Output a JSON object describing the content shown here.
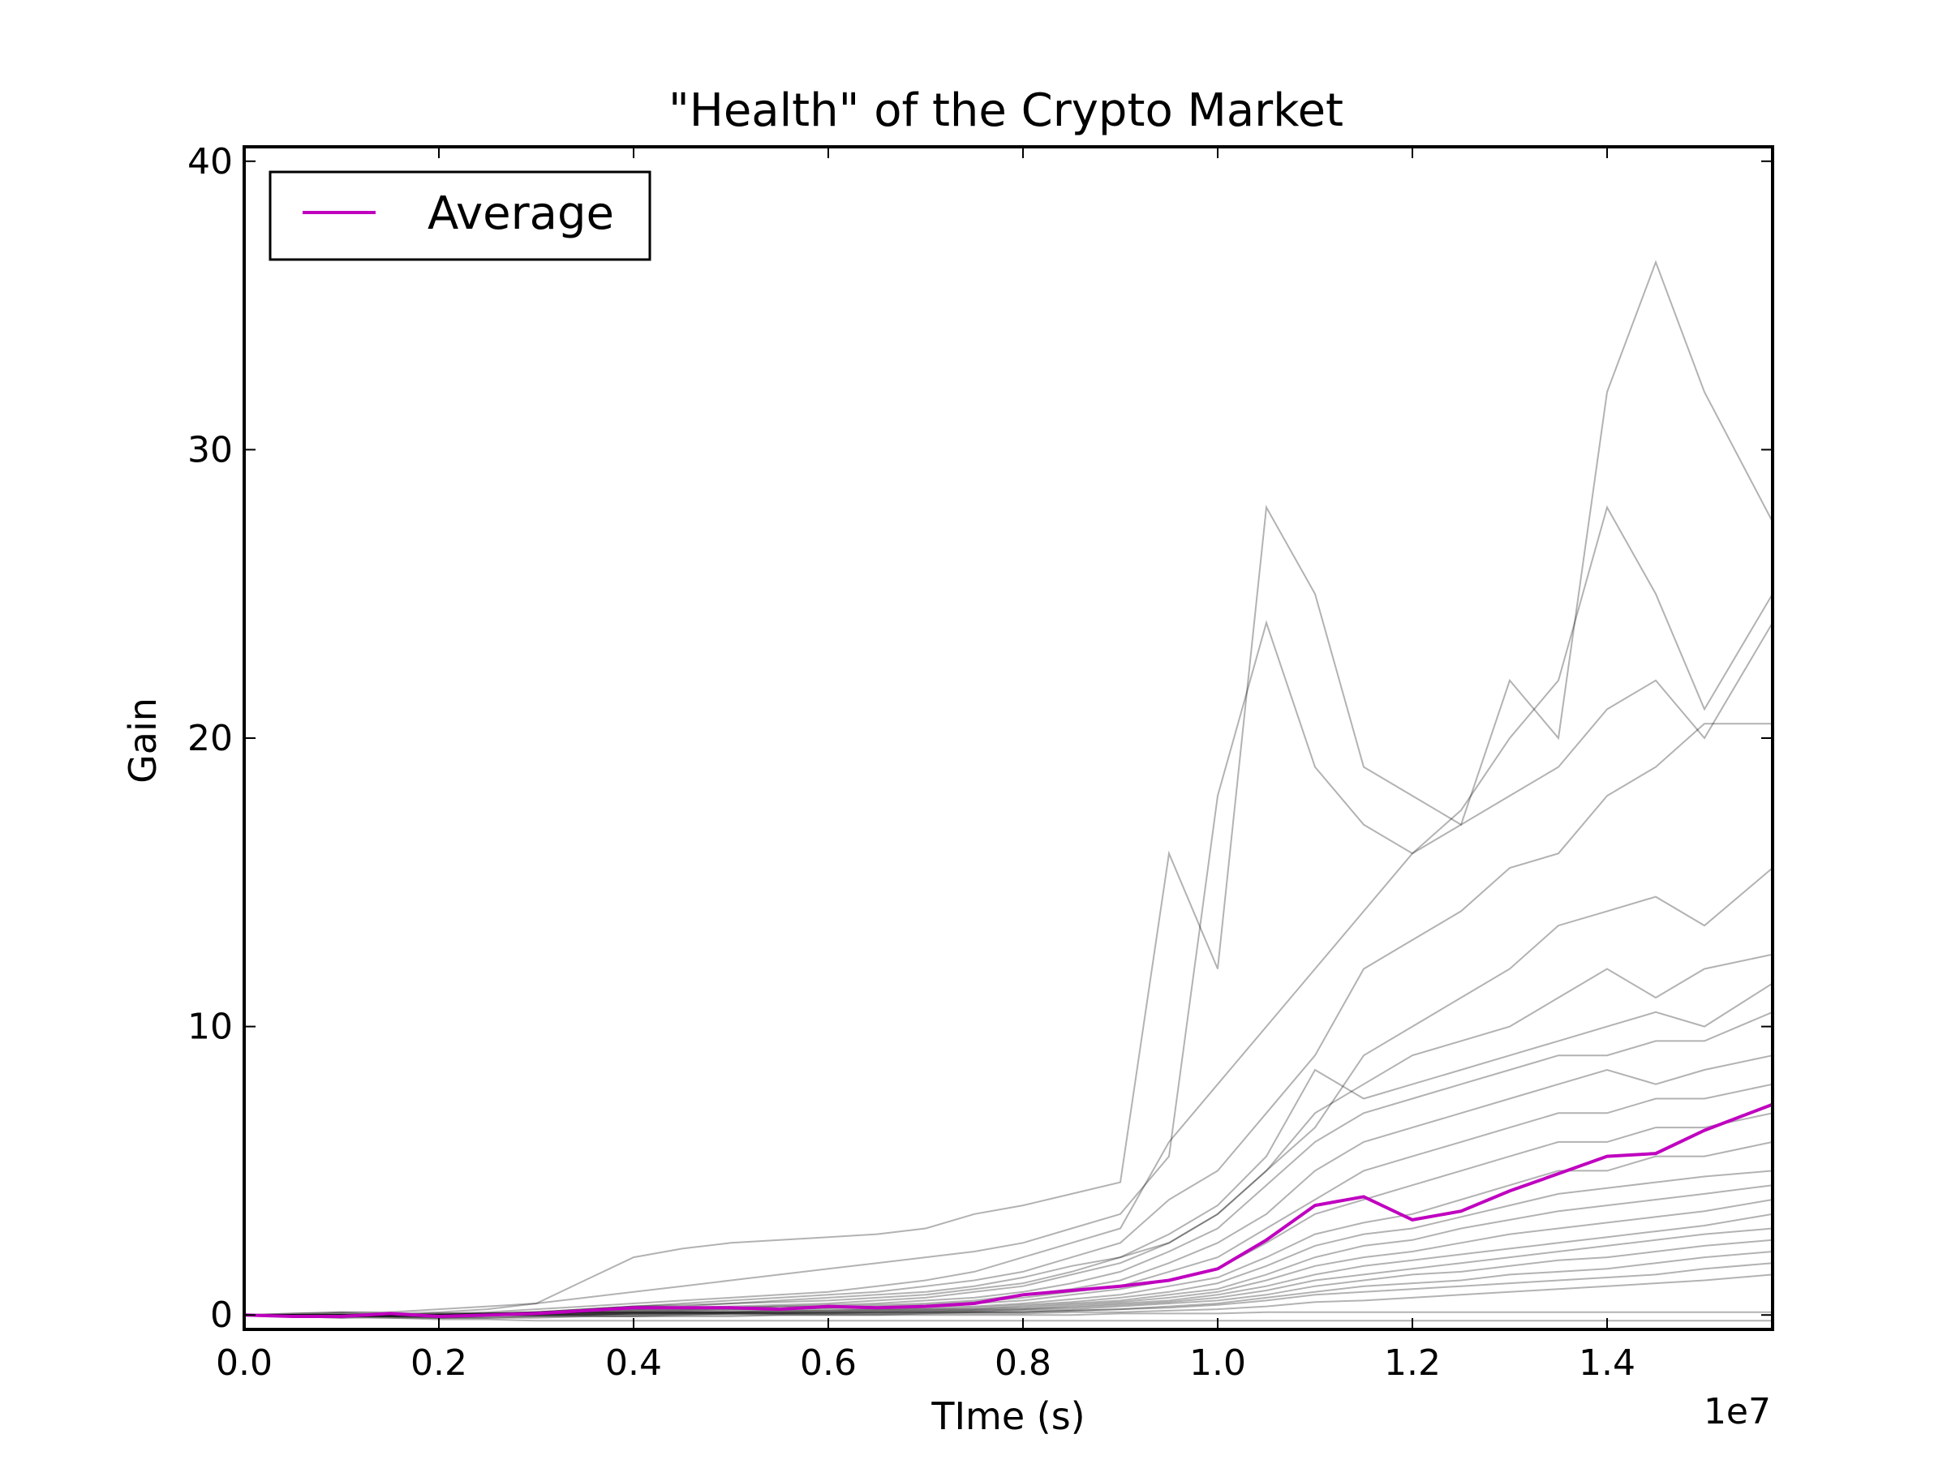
{
  "chart_data": {
    "type": "line",
    "title": "\"Health\" of the Crypto Market",
    "xlabel": "TIme (s)",
    "ylabel": "Gain",
    "x_offset_label": "1e7",
    "xlim": [
      0.0,
      15700000
    ],
    "ylim": [
      -0.5,
      40.5
    ],
    "x_ticks": [
      0,
      2000000,
      4000000,
      6000000,
      8000000,
      10000000,
      12000000,
      14000000
    ],
    "x_tick_labels": [
      "0.0",
      "0.2",
      "0.4",
      "0.6",
      "0.8",
      "1.0",
      "1.2",
      "1.4"
    ],
    "y_ticks": [
      0,
      10,
      20,
      30,
      40
    ],
    "y_tick_labels": [
      "0",
      "10",
      "20",
      "30",
      "40"
    ],
    "grid": false,
    "legend": {
      "placement": "top-left",
      "entries": [
        {
          "label": "Average",
          "color": "#bf00bf"
        }
      ]
    },
    "colors": {
      "average": "#bf00bf",
      "coins": "#000000",
      "coin_opacity": 0.3
    },
    "x": [
      0,
      500000,
      1000000,
      1500000,
      2000000,
      2500000,
      3000000,
      3500000,
      4000000,
      4500000,
      5000000,
      5500000,
      6000000,
      6500000,
      7000000,
      7500000,
      8000000,
      8500000,
      9000000,
      9500000,
      10000000,
      10500000,
      11000000,
      11500000,
      12000000,
      12500000,
      13000000,
      13500000,
      14000000,
      14500000,
      15000000,
      15700000
    ],
    "series": [
      {
        "name": "Average",
        "role": "average",
        "values": [
          0,
          -0.05,
          -0.05,
          0.05,
          -0.05,
          0,
          0.05,
          0.15,
          0.25,
          0.25,
          0.25,
          0.2,
          0.3,
          0.25,
          0.3,
          0.4,
          0.7,
          0.85,
          1.0,
          1.2,
          1.6,
          2.6,
          3.8,
          4.1,
          3.3,
          3.6,
          4.3,
          4.9,
          5.5,
          5.6,
          6.4,
          7.3
        ]
      },
      {
        "role": "coin",
        "values": [
          0,
          0.05,
          0.1,
          0.05,
          0.1,
          0.2,
          0.4,
          1.2,
          2.0,
          2.3,
          2.5,
          2.6,
          2.7,
          2.8,
          3.0,
          3.5,
          3.8,
          4.2,
          4.6,
          16.0,
          12.0,
          28.0,
          25.0,
          19.0,
          18.0,
          17.0,
          22.0,
          20.0,
          32.0,
          36.5,
          32.0,
          27.5
        ]
      },
      {
        "role": "coin",
        "values": [
          0,
          0.05,
          0.1,
          0.1,
          0.2,
          0.3,
          0.4,
          0.6,
          0.8,
          1.0,
          1.2,
          1.4,
          1.6,
          1.8,
          2.0,
          2.2,
          2.5,
          3.0,
          3.5,
          5.5,
          18.0,
          24.0,
          19.0,
          17.0,
          16.0,
          17.5,
          20.0,
          22.0,
          28.0,
          25.0,
          21.0,
          25.0
        ]
      },
      {
        "role": "coin",
        "values": [
          0,
          0.0,
          0.05,
          0.0,
          0.05,
          0.1,
          0.2,
          0.3,
          0.4,
          0.5,
          0.6,
          0.7,
          0.8,
          1.0,
          1.2,
          1.5,
          2.0,
          2.5,
          3.0,
          6.0,
          8.0,
          10.0,
          12.0,
          14.0,
          16.0,
          17.0,
          18.0,
          19.0,
          21.0,
          22.0,
          20.0,
          24.0
        ]
      },
      {
        "role": "coin",
        "values": [
          0,
          0.0,
          0.0,
          0.05,
          0.0,
          0.05,
          0.1,
          0.2,
          0.3,
          0.4,
          0.5,
          0.6,
          0.7,
          0.8,
          1.0,
          1.2,
          1.5,
          2.0,
          2.5,
          4.0,
          5.0,
          7.0,
          9.0,
          12.0,
          13.0,
          14.0,
          15.5,
          16.0,
          18.0,
          19.0,
          20.5,
          20.5
        ]
      },
      {
        "role": "coin",
        "values": [
          0,
          -0.05,
          -0.1,
          0.0,
          -0.05,
          0.0,
          0.1,
          0.2,
          0.3,
          0.3,
          0.4,
          0.5,
          0.6,
          0.7,
          0.8,
          1.0,
          1.3,
          1.7,
          2.0,
          2.5,
          3.5,
          5.0,
          6.5,
          9.0,
          10.0,
          11.0,
          12.0,
          13.5,
          14.0,
          14.5,
          13.5,
          15.5
        ]
      },
      {
        "role": "coin",
        "values": [
          0,
          0.0,
          -0.05,
          0.0,
          0.0,
          0.05,
          0.1,
          0.15,
          0.2,
          0.25,
          0.3,
          0.35,
          0.4,
          0.5,
          0.6,
          0.8,
          1.0,
          1.4,
          1.8,
          2.5,
          3.5,
          5.0,
          7.0,
          8.0,
          9.0,
          9.5,
          10.0,
          11.0,
          12.0,
          11.0,
          12.0,
          12.5
        ]
      },
      {
        "role": "coin",
        "values": [
          0,
          0.0,
          0.05,
          0.0,
          0.05,
          0.05,
          0.1,
          0.2,
          0.3,
          0.35,
          0.4,
          0.45,
          0.5,
          0.6,
          0.7,
          0.9,
          1.1,
          1.5,
          2.0,
          2.8,
          3.8,
          5.5,
          8.5,
          7.5,
          8.0,
          8.5,
          9.0,
          9.5,
          10.0,
          10.5,
          10.0,
          11.5
        ]
      },
      {
        "role": "coin",
        "values": [
          0,
          -0.05,
          0.0,
          -0.05,
          0.0,
          0.05,
          0.05,
          0.1,
          0.15,
          0.2,
          0.25,
          0.3,
          0.35,
          0.4,
          0.5,
          0.6,
          0.8,
          1.1,
          1.5,
          2.2,
          3.0,
          4.5,
          6.0,
          7.0,
          7.5,
          8.0,
          8.5,
          9.0,
          9.0,
          9.5,
          9.5,
          10.5
        ]
      },
      {
        "role": "coin",
        "values": [
          0,
          0.0,
          0.0,
          0.0,
          0.05,
          0.05,
          0.1,
          0.15,
          0.2,
          0.2,
          0.25,
          0.3,
          0.3,
          0.35,
          0.4,
          0.5,
          0.7,
          0.9,
          1.2,
          1.8,
          2.5,
          3.5,
          5.0,
          6.0,
          6.5,
          7.0,
          7.5,
          8.0,
          8.5,
          8.0,
          8.5,
          9.0
        ]
      },
      {
        "role": "coin",
        "values": [
          0,
          0.0,
          -0.05,
          0.0,
          -0.05,
          0.0,
          0.05,
          0.1,
          0.15,
          0.15,
          0.2,
          0.2,
          0.25,
          0.3,
          0.35,
          0.45,
          0.6,
          0.8,
          1.0,
          1.5,
          2.0,
          3.0,
          4.0,
          5.0,
          5.5,
          6.0,
          6.5,
          7.0,
          7.0,
          7.5,
          7.5,
          8.0
        ]
      },
      {
        "role": "coin",
        "values": [
          0,
          0.0,
          0.0,
          0.05,
          0.0,
          0.05,
          0.05,
          0.1,
          0.1,
          0.15,
          0.2,
          0.2,
          0.25,
          0.25,
          0.3,
          0.4,
          0.5,
          0.7,
          0.9,
          1.2,
          1.6,
          2.5,
          3.5,
          4.0,
          4.5,
          5.0,
          5.5,
          6.0,
          6.0,
          6.5,
          6.5,
          7.0
        ]
      },
      {
        "role": "coin",
        "values": [
          0,
          0.0,
          0.0,
          0.0,
          0.0,
          0.05,
          0.05,
          0.1,
          0.1,
          0.1,
          0.15,
          0.15,
          0.2,
          0.2,
          0.25,
          0.3,
          0.4,
          0.55,
          0.7,
          1.0,
          1.3,
          2.0,
          2.8,
          3.2,
          3.5,
          4.0,
          4.5,
          5.0,
          5.0,
          5.5,
          5.5,
          6.0
        ]
      },
      {
        "role": "coin",
        "values": [
          0,
          -0.05,
          0.0,
          -0.05,
          -0.05,
          0.0,
          0.05,
          0.05,
          0.1,
          0.1,
          0.1,
          0.15,
          0.15,
          0.2,
          0.2,
          0.25,
          0.35,
          0.45,
          0.6,
          0.8,
          1.1,
          1.7,
          2.4,
          2.8,
          3.0,
          3.4,
          3.8,
          4.2,
          4.4,
          4.6,
          4.8,
          5.0
        ]
      },
      {
        "role": "coin",
        "values": [
          0,
          0.0,
          0.0,
          0.0,
          0.0,
          0.0,
          0.05,
          0.05,
          0.1,
          0.1,
          0.1,
          0.1,
          0.15,
          0.15,
          0.2,
          0.2,
          0.3,
          0.4,
          0.5,
          0.7,
          0.9,
          1.4,
          2.0,
          2.4,
          2.6,
          3.0,
          3.3,
          3.6,
          3.8,
          4.0,
          4.2,
          4.5
        ]
      },
      {
        "role": "coin",
        "values": [
          0,
          0.0,
          -0.05,
          0.0,
          -0.05,
          0.0,
          0.0,
          0.05,
          0.05,
          0.1,
          0.1,
          0.1,
          0.1,
          0.15,
          0.15,
          0.2,
          0.25,
          0.35,
          0.45,
          0.6,
          0.8,
          1.2,
          1.7,
          2.0,
          2.2,
          2.5,
          2.8,
          3.0,
          3.2,
          3.4,
          3.6,
          4.0
        ]
      },
      {
        "role": "coin",
        "values": [
          0,
          0.0,
          0.0,
          0.0,
          0.0,
          0.0,
          0.0,
          0.05,
          0.05,
          0.05,
          0.1,
          0.1,
          0.1,
          0.1,
          0.15,
          0.15,
          0.2,
          0.3,
          0.4,
          0.5,
          0.7,
          1.0,
          1.4,
          1.7,
          1.9,
          2.1,
          2.3,
          2.5,
          2.7,
          2.9,
          3.1,
          3.5
        ]
      },
      {
        "role": "coin",
        "values": [
          0,
          0.0,
          -0.05,
          -0.05,
          -0.05,
          0.0,
          0.0,
          0.0,
          0.05,
          0.05,
          0.05,
          0.05,
          0.1,
          0.1,
          0.1,
          0.15,
          0.2,
          0.25,
          0.35,
          0.45,
          0.6,
          0.85,
          1.2,
          1.4,
          1.6,
          1.8,
          2.0,
          2.2,
          2.4,
          2.6,
          2.8,
          3.0
        ]
      },
      {
        "role": "coin",
        "values": [
          0,
          0.0,
          0.0,
          0.0,
          0.0,
          0.0,
          0.0,
          0.0,
          0.05,
          0.05,
          0.05,
          0.05,
          0.05,
          0.1,
          0.1,
          0.1,
          0.15,
          0.2,
          0.3,
          0.4,
          0.5,
          0.7,
          1.0,
          1.2,
          1.4,
          1.5,
          1.7,
          1.9,
          2.0,
          2.2,
          2.4,
          2.6
        ]
      },
      {
        "role": "coin",
        "values": [
          0,
          -0.05,
          -0.05,
          -0.05,
          -0.1,
          -0.05,
          -0.05,
          0.0,
          0.0,
          0.0,
          0.05,
          0.05,
          0.05,
          0.05,
          0.1,
          0.1,
          0.1,
          0.15,
          0.2,
          0.3,
          0.4,
          0.6,
          0.8,
          1.0,
          1.1,
          1.2,
          1.4,
          1.5,
          1.6,
          1.8,
          2.0,
          2.2
        ]
      },
      {
        "role": "coin",
        "values": [
          0,
          0.0,
          0.0,
          0.0,
          0.0,
          0.0,
          0.0,
          0.0,
          0.0,
          0.05,
          0.05,
          0.05,
          0.05,
          0.05,
          0.05,
          0.1,
          0.1,
          0.15,
          0.2,
          0.25,
          0.35,
          0.5,
          0.7,
          0.8,
          0.9,
          1.0,
          1.1,
          1.2,
          1.3,
          1.4,
          1.6,
          1.8
        ]
      },
      {
        "role": "coin",
        "values": [
          0,
          -0.05,
          -0.05,
          -0.1,
          -0.1,
          -0.1,
          -0.05,
          -0.05,
          -0.05,
          0.0,
          0.0,
          0.0,
          0.0,
          0.0,
          0.05,
          0.05,
          0.05,
          0.1,
          0.1,
          0.15,
          0.2,
          0.3,
          0.45,
          0.5,
          0.6,
          0.7,
          0.8,
          0.9,
          1.0,
          1.1,
          1.2,
          1.4
        ]
      },
      {
        "role": "coin",
        "values": [
          0,
          0.0,
          -0.05,
          -0.05,
          -0.1,
          -0.1,
          -0.1,
          -0.05,
          -0.05,
          -0.05,
          -0.05,
          0.0,
          0.0,
          0.0,
          0.0,
          0.0,
          0.0,
          0.0,
          0.05,
          0.05,
          0.05,
          0.1,
          0.1,
          0.1,
          0.1,
          0.1,
          0.1,
          0.1,
          0.1,
          0.1,
          0.1,
          0.1
        ]
      },
      {
        "role": "coin",
        "values": [
          0,
          -0.05,
          -0.1,
          -0.1,
          -0.15,
          -0.15,
          -0.2,
          -0.2,
          -0.2,
          -0.2,
          -0.2,
          -0.2,
          -0.2,
          -0.2,
          -0.2,
          -0.2,
          -0.2,
          -0.2,
          -0.2,
          -0.2,
          -0.2,
          -0.2,
          -0.2,
          -0.2,
          -0.2,
          -0.2,
          -0.2,
          -0.2,
          -0.2,
          -0.2,
          -0.2,
          -0.2
        ]
      }
    ]
  }
}
